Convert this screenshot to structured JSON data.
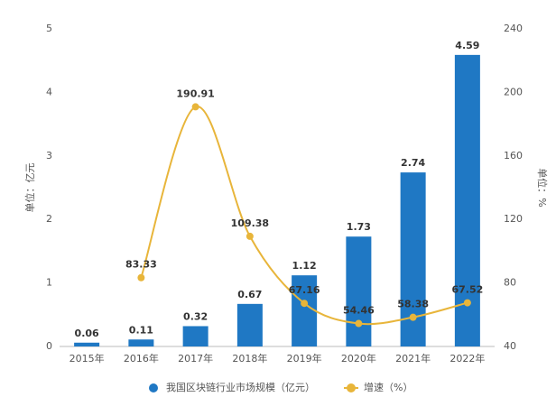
{
  "chart_data": {
    "type": "bar",
    "categories": [
      "2015年",
      "2016年",
      "2017年",
      "2018年",
      "2019年",
      "2020年",
      "2021年",
      "2022年"
    ],
    "series": [
      {
        "name": "我国区块链行业市场规模（亿元）",
        "type": "bar",
        "color": "#1f78c4",
        "values": [
          0.06,
          0.11,
          0.32,
          0.67,
          1.12,
          1.73,
          2.74,
          4.59
        ]
      },
      {
        "name": "增速（%）",
        "type": "line",
        "axis": "y2",
        "color": "#e8b53a",
        "values": [
          null,
          83.33,
          190.91,
          109.38,
          67.16,
          54.46,
          58.38,
          67.52
        ]
      }
    ],
    "ylabel": "单位：亿元",
    "y2label": "单位：%",
    "ylim": [
      0,
      5
    ],
    "yticks": [
      0,
      1,
      2,
      3,
      4,
      5
    ],
    "y2lim": [
      40,
      240
    ],
    "y2ticks": [
      40,
      80,
      120,
      160,
      200,
      240
    ],
    "legend": "bottom"
  }
}
